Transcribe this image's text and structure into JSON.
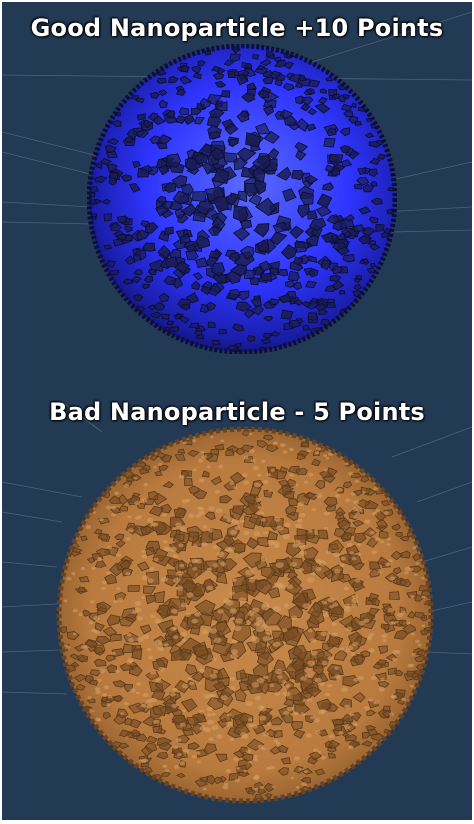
{
  "good_particle": {
    "label": "Good Nanoparticle +10 Points",
    "color": "#2f35ff",
    "facet_color": "#1a1d55"
  },
  "bad_particle": {
    "label": "Bad Nanoparticle - 5 Points",
    "color": "#c58748",
    "facet_color": "#7a4d24"
  },
  "colors": {
    "background": "#233a55",
    "border": "#ffffff",
    "grid_line": "#9fb2c7"
  }
}
